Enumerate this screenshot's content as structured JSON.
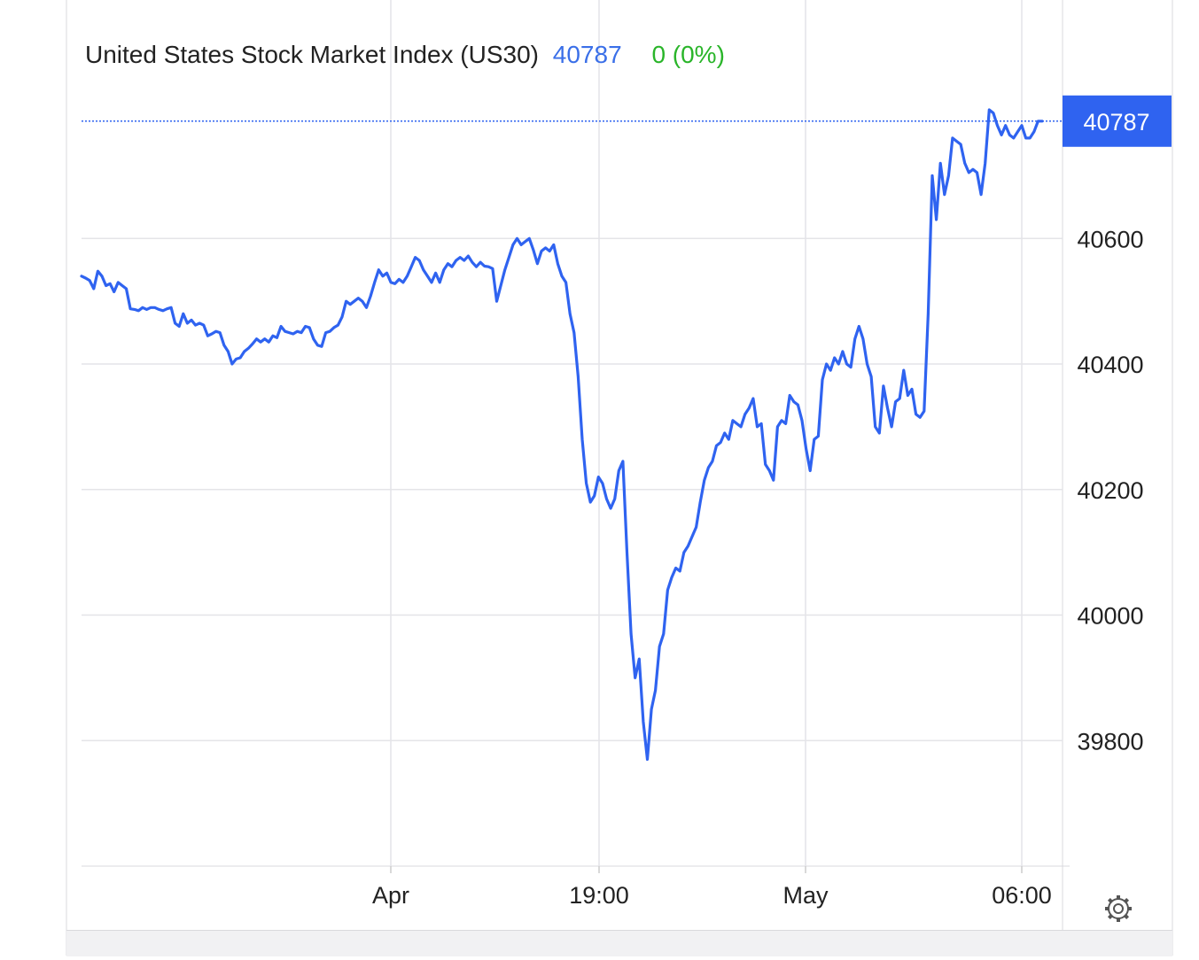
{
  "header": {
    "title": "United States Stock Market Index (US30)",
    "price": "40787",
    "change": "0 (0%)"
  },
  "colors": {
    "line": "#2f63f0",
    "price_text": "#3a6fe8",
    "change_text": "#2ab52a",
    "price_tag_bg": "#2f63f0",
    "grid": "#e4e4e8",
    "axis_text": "#222222"
  },
  "icons": {
    "settings": "gear-icon"
  },
  "chart_data": {
    "type": "line",
    "title": "United States Stock Market Index (US30)",
    "xlabel": "",
    "ylabel": "",
    "ylim": [
      39600,
      40980
    ],
    "y_ticks": [
      39800,
      40000,
      40200,
      40400,
      40600
    ],
    "x_tick_labels": [
      "Apr",
      "19:00",
      "May",
      "06:00"
    ],
    "last_price": 40787,
    "last_price_label": "40787",
    "grid": true,
    "legend": "none",
    "series": [
      {
        "values": [
          40540,
          40537,
          40533,
          40520,
          40548,
          40540,
          40525,
          40528,
          40515,
          40530,
          40525,
          40520,
          40488,
          40487,
          40485,
          40490,
          40487,
          40490,
          40490,
          40487,
          40485,
          40488,
          40490,
          40465,
          40460,
          40480,
          40465,
          40470,
          40462,
          40465,
          40462,
          40445,
          40448,
          40452,
          40450,
          40430,
          40420,
          40400,
          40408,
          40410,
          40420,
          40425,
          40432,
          40440,
          40435,
          40440,
          40435,
          40445,
          40442,
          40460,
          40452,
          40450,
          40448,
          40452,
          40450,
          40460,
          40458,
          40440,
          40430,
          40428,
          40450,
          40452,
          40458,
          40462,
          40475,
          40500,
          40495,
          40500,
          40505,
          40500,
          40490,
          40508,
          40530,
          40550,
          40540,
          40545,
          40530,
          40528,
          40535,
          40530,
          40540,
          40555,
          40570,
          40565,
          40550,
          40540,
          40530,
          40545,
          40530,
          40550,
          40560,
          40555,
          40565,
          40570,
          40565,
          40572,
          40562,
          40555,
          40562,
          40556,
          40555,
          40552,
          40500,
          40525,
          40550,
          40570,
          40590,
          40600,
          40590,
          40595,
          40600,
          40582,
          40560,
          40580,
          40585,
          40580,
          40590,
          40560,
          40540,
          40530,
          40480,
          40450,
          40380,
          40280,
          40210,
          40180,
          40190,
          40220,
          40210,
          40185,
          40170,
          40185,
          40230,
          40245,
          40100,
          39970,
          39900,
          39930,
          39830,
          39770,
          39850,
          39880,
          39950,
          39970,
          40040,
          40060,
          40075,
          40070,
          40100,
          40110,
          40125,
          40140,
          40180,
          40215,
          40235,
          40245,
          40270,
          40275,
          40290,
          40280,
          40310,
          40305,
          40300,
          40320,
          40330,
          40345,
          40300,
          40305,
          40240,
          40230,
          40215,
          40300,
          40310,
          40305,
          40350,
          40340,
          40335,
          40310,
          40265,
          40230,
          40280,
          40285,
          40375,
          40400,
          40390,
          40410,
          40400,
          40420,
          40400,
          40395,
          40440,
          40460,
          40440,
          40400,
          40380,
          40300,
          40290,
          40365,
          40330,
          40300,
          40340,
          40345,
          40390,
          40350,
          40360,
          40320,
          40315,
          40325,
          40480,
          40700,
          40630,
          40720,
          40670,
          40700,
          40760,
          40755,
          40750,
          40720,
          40705,
          40710,
          40705,
          40670,
          40720,
          40805,
          40800,
          40780,
          40765,
          40780,
          40765,
          40760,
          40770,
          40780,
          40760,
          40760,
          40770,
          40787,
          40787
        ]
      }
    ]
  }
}
